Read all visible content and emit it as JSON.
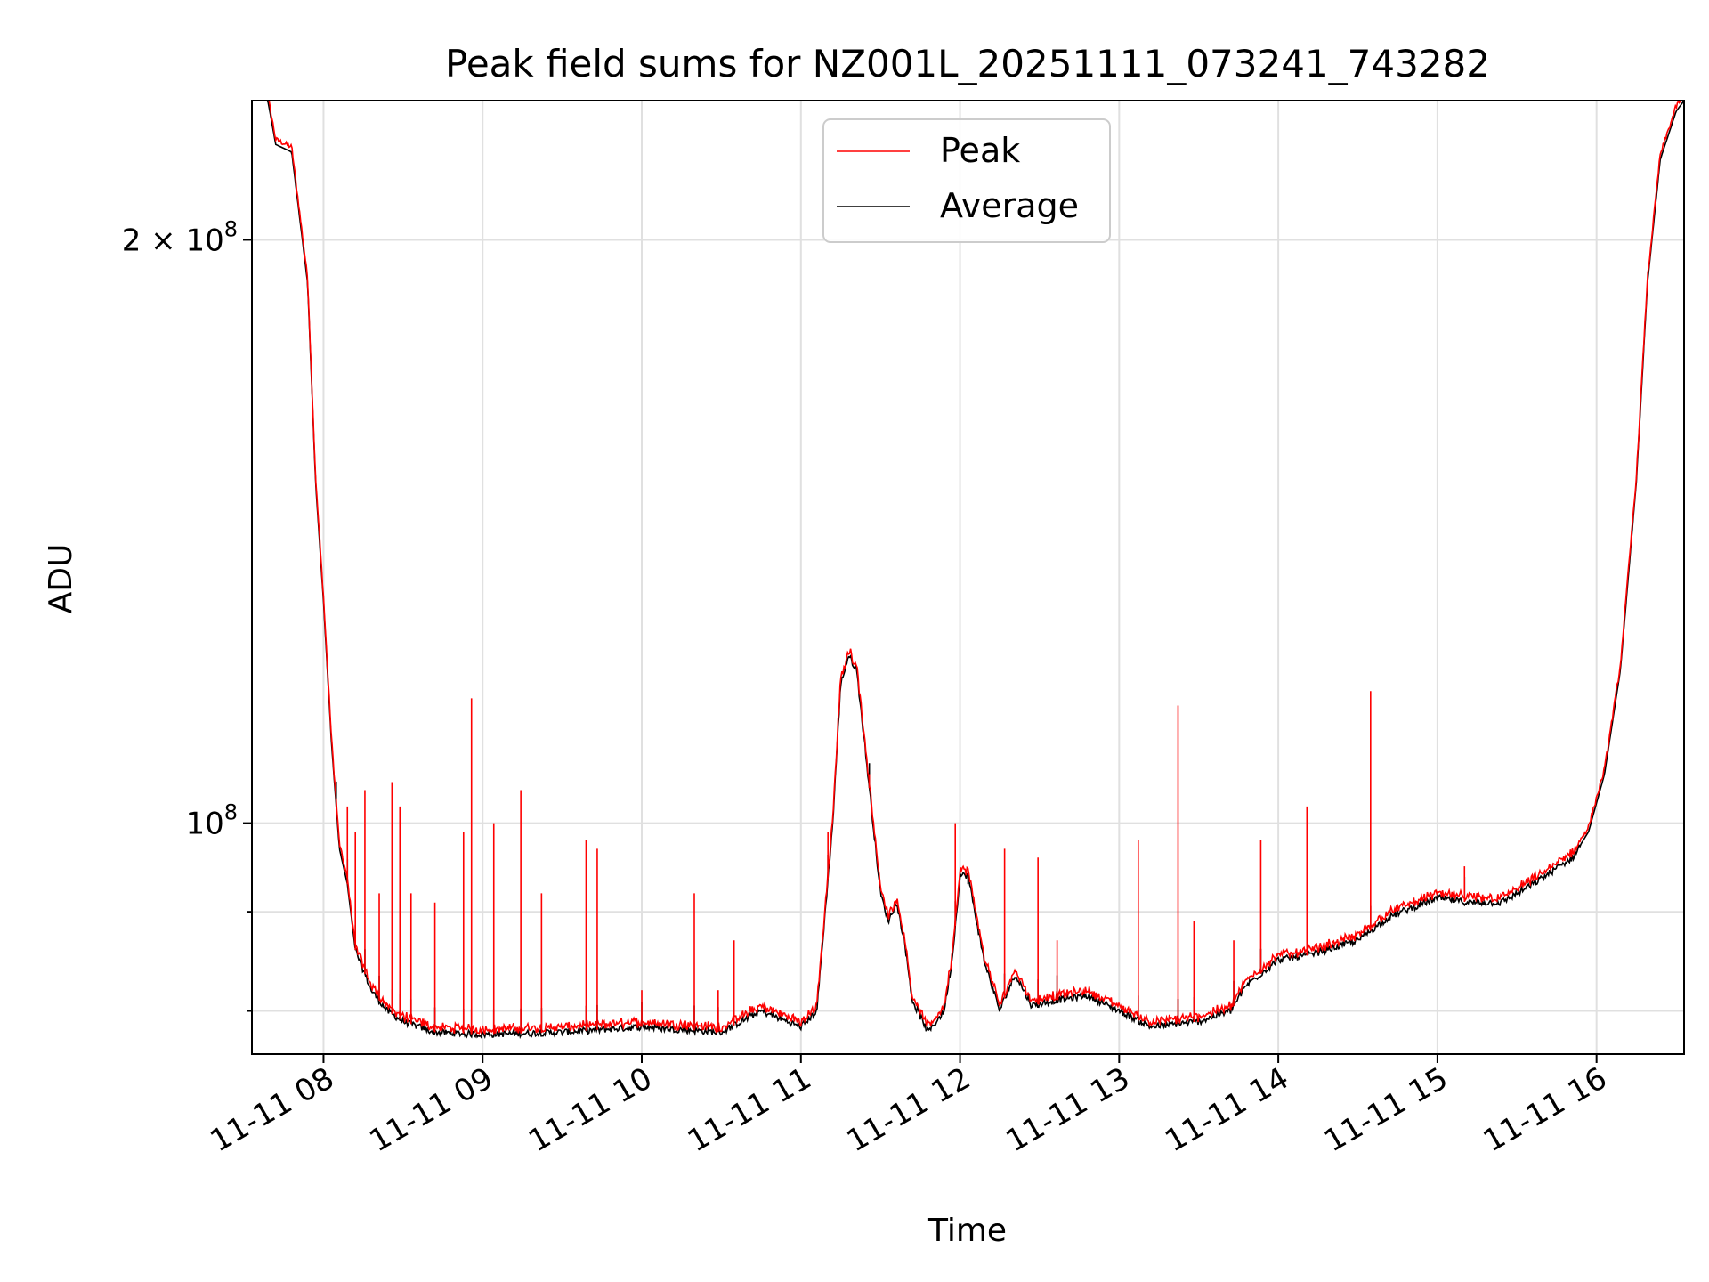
{
  "chart_data": {
    "type": "line",
    "title": "Peak field sums for NZ001L_20251111_073241_743282",
    "xlabel": "Time",
    "ylabel": "ADU",
    "yscale": "log",
    "ylim": [
      76000000,
      236000000
    ],
    "xlim_hours": [
      7.55,
      16.55
    ],
    "grid": true,
    "legend_position": "upper-center",
    "colors": {
      "Peak": "#ff0000",
      "Average": "#000000"
    },
    "x_ticks": [
      {
        "hour": 8,
        "label": "11-11 08"
      },
      {
        "hour": 9,
        "label": "11-11 09"
      },
      {
        "hour": 10,
        "label": "11-11 10"
      },
      {
        "hour": 11,
        "label": "11-11 11"
      },
      {
        "hour": 12,
        "label": "11-11 12"
      },
      {
        "hour": 13,
        "label": "11-11 13"
      },
      {
        "hour": 14,
        "label": "11-11 14"
      },
      {
        "hour": 15,
        "label": "11-11 15"
      },
      {
        "hour": 16,
        "label": "11-11 16"
      }
    ],
    "y_major_ticks": [
      {
        "value": 100000000,
        "base": "10",
        "exp": "8",
        "prefix": ""
      },
      {
        "value": 200000000,
        "base": "10",
        "exp": "8",
        "prefix": "2 × "
      }
    ],
    "y_minor_ticks": [
      80000000,
      90000000
    ],
    "series": [
      {
        "name": "Average",
        "baseline": [
          [
            7.55,
            240000000
          ],
          [
            7.65,
            236000000
          ],
          [
            7.7,
            224000000
          ],
          [
            7.8,
            222000000
          ],
          [
            7.9,
            190000000
          ],
          [
            7.95,
            150000000
          ],
          [
            8.0,
            130000000
          ],
          [
            8.05,
            110000000
          ],
          [
            8.1,
            97000000
          ],
          [
            8.15,
            93000000
          ],
          [
            8.2,
            86000000
          ],
          [
            8.3,
            82000000
          ],
          [
            8.4,
            80000000
          ],
          [
            8.5,
            79000000
          ],
          [
            8.7,
            78000000
          ],
          [
            9.0,
            77800000
          ],
          [
            9.5,
            78000000
          ],
          [
            10.0,
            78500000
          ],
          [
            10.5,
            78000000
          ],
          [
            10.75,
            80000000
          ],
          [
            11.0,
            78500000
          ],
          [
            11.1,
            80000000
          ],
          [
            11.2,
            100000000
          ],
          [
            11.25,
            118000000
          ],
          [
            11.3,
            122000000
          ],
          [
            11.35,
            120000000
          ],
          [
            11.4,
            110000000
          ],
          [
            11.5,
            92000000
          ],
          [
            11.55,
            89000000
          ],
          [
            11.6,
            91000000
          ],
          [
            11.65,
            87000000
          ],
          [
            11.7,
            81000000
          ],
          [
            11.8,
            78000000
          ],
          [
            11.9,
            80000000
          ],
          [
            11.95,
            85000000
          ],
          [
            12.0,
            94000000
          ],
          [
            12.05,
            94000000
          ],
          [
            12.15,
            85000000
          ],
          [
            12.25,
            80000000
          ],
          [
            12.3,
            82000000
          ],
          [
            12.35,
            83500000
          ],
          [
            12.45,
            80500000
          ],
          [
            12.6,
            81000000
          ],
          [
            12.8,
            81500000
          ],
          [
            13.0,
            80000000
          ],
          [
            13.2,
            78500000
          ],
          [
            13.5,
            79000000
          ],
          [
            13.7,
            80000000
          ],
          [
            13.8,
            82500000
          ],
          [
            14.0,
            85000000
          ],
          [
            14.2,
            85500000
          ],
          [
            14.5,
            87000000
          ],
          [
            14.7,
            89500000
          ],
          [
            15.0,
            91500000
          ],
          [
            15.2,
            91000000
          ],
          [
            15.4,
            91000000
          ],
          [
            15.6,
            93000000
          ],
          [
            15.85,
            96000000
          ],
          [
            15.95,
            99000000
          ],
          [
            16.05,
            106000000
          ],
          [
            16.15,
            120000000
          ],
          [
            16.25,
            150000000
          ],
          [
            16.32,
            190000000
          ],
          [
            16.4,
            220000000
          ],
          [
            16.5,
            233000000
          ],
          [
            16.55,
            236000000
          ]
        ],
        "spikes": [
          [
            12.05,
            93000000
          ]
        ]
      },
      {
        "name": "Peak",
        "offset_ratio": 1.006,
        "spikes": [
          [
            8.08,
            103000000
          ],
          [
            8.15,
            102000000
          ],
          [
            8.2,
            99000000
          ],
          [
            8.26,
            104000000
          ],
          [
            8.35,
            92000000
          ],
          [
            8.43,
            105000000
          ],
          [
            8.48,
            102000000
          ],
          [
            8.55,
            92000000
          ],
          [
            8.7,
            91000000
          ],
          [
            8.88,
            99000000
          ],
          [
            8.93,
            116000000
          ],
          [
            9.07,
            100000000
          ],
          [
            9.24,
            104000000
          ],
          [
            9.37,
            92000000
          ],
          [
            9.65,
            98000000
          ],
          [
            9.72,
            97000000
          ],
          [
            10.0,
            82000000
          ],
          [
            10.33,
            92000000
          ],
          [
            10.48,
            82000000
          ],
          [
            10.58,
            87000000
          ],
          [
            11.17,
            99000000
          ],
          [
            11.43,
            106000000
          ],
          [
            11.97,
            100000000
          ],
          [
            12.28,
            97000000
          ],
          [
            12.49,
            96000000
          ],
          [
            12.61,
            87000000
          ],
          [
            13.12,
            98000000
          ],
          [
            13.37,
            115000000
          ],
          [
            13.47,
            89000000
          ],
          [
            13.72,
            87000000
          ],
          [
            13.89,
            98000000
          ],
          [
            14.18,
            102000000
          ],
          [
            14.58,
            117000000
          ],
          [
            15.17,
            95000000
          ]
        ]
      }
    ]
  }
}
